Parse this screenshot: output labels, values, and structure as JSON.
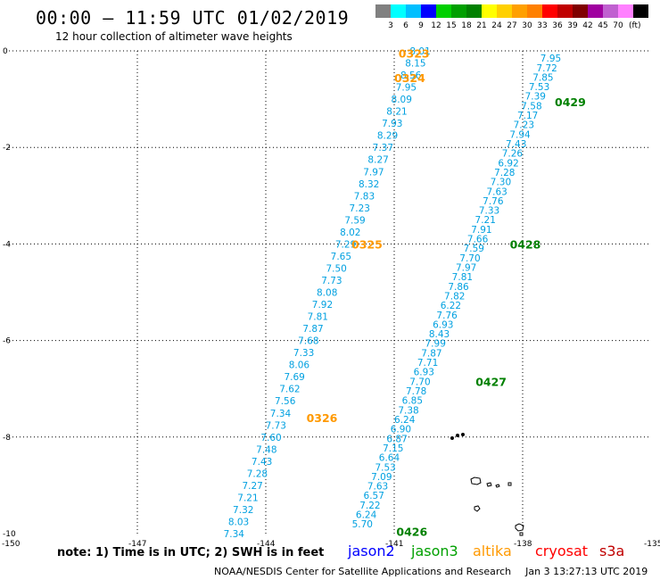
{
  "title": "00:00 – 11:59 UTC 01/02/2019",
  "subtitle": "12 hour collection of altimeter wave heights",
  "colorbar": {
    "swatches": [
      "#808080",
      "#00ffff",
      "#00bfff",
      "#0000ff",
      "#00d000",
      "#00a000",
      "#008000",
      "#ffff00",
      "#ffd000",
      "#ffa000",
      "#ff8000",
      "#ff0000",
      "#c00000",
      "#800000",
      "#a000a0",
      "#c060d0",
      "#ff80ff",
      "#000000"
    ],
    "labels": [
      "3",
      "6",
      "9",
      "12",
      "15",
      "18",
      "21",
      "24",
      "27",
      "30",
      "33",
      "36",
      "39",
      "42",
      "45",
      "70"
    ],
    "unit": "(ft)"
  },
  "axes": {
    "x_ticks": [
      "-150",
      "-147",
      "-144",
      "-141",
      "-138",
      "-135"
    ],
    "y_ticks": [
      "0",
      "-2",
      "-4",
      "-6",
      "-8",
      "-10"
    ]
  },
  "chart_data": {
    "type": "map",
    "xlim": [
      -150,
      -135
    ],
    "ylim": [
      -10,
      0
    ],
    "tracks": [
      {
        "color": "#00a0e0",
        "lon_start": -140.15,
        "lat_start": 0.0,
        "lon_end": -144.5,
        "lat_end": -10.0,
        "values": [
          "8.01",
          "8.15",
          "8.56",
          "7.95",
          "8.09",
          "8.21",
          "7.93",
          "8.29",
          "7.37",
          "8.27",
          "7.97",
          "8.32",
          "7.83",
          "7.23",
          "7.59",
          "8.02",
          "7.29",
          "7.65",
          "7.50",
          "7.73",
          "8.08",
          "7.92",
          "7.81",
          "7.87",
          "7.68",
          "7.33",
          "8.06",
          "7.69",
          "7.62",
          "7.56",
          "7.34",
          "7.73",
          "7.60",
          "7.48",
          "7.43",
          "7.28",
          "7.27",
          "7.21",
          "7.32",
          "8.03",
          "7.34"
        ]
      },
      {
        "color": "#00a0e0",
        "lon_start": -137.1,
        "lat_start": -0.15,
        "lon_end": -141.5,
        "lat_end": -9.8,
        "values": [
          "7.95",
          "7.72",
          "7.85",
          "7.53",
          "7.39",
          "7.58",
          "7.17",
          "7.23",
          "7.94",
          "7.43",
          "7.26",
          "6.92",
          "7.28",
          "7.30",
          "7.63",
          "7.76",
          "7.33",
          "7.21",
          "7.91",
          "7.66",
          "7.59",
          "7.70",
          "7.97",
          "7.81",
          "7.86",
          "7.82",
          "6.22",
          "7.76",
          "6.93",
          "8.43",
          "7.99",
          "7.87",
          "7.71",
          "6.93",
          "7.70",
          "7.78",
          "6.85",
          "7.38",
          "6.24",
          "6.90",
          "6.87",
          "7.15",
          "6.64",
          "7.53",
          "7.09",
          "7.63",
          "6.57",
          "7.22",
          "6.24",
          "5.70"
        ]
      }
    ],
    "time_labels": [
      {
        "text": "0323",
        "color": "#ff9900",
        "lon": -140.9,
        "lat": -0.05
      },
      {
        "text": "0324",
        "color": "#ff9900",
        "lon": -141.0,
        "lat": -0.55
      },
      {
        "text": "0325",
        "color": "#ff9900",
        "lon": -142.0,
        "lat": -4.0
      },
      {
        "text": "0326",
        "color": "#ff9900",
        "lon": -143.05,
        "lat": -7.6
      },
      {
        "text": "0429",
        "color": "#008000",
        "lon": -137.25,
        "lat": -1.05
      },
      {
        "text": "0428",
        "color": "#008000",
        "lon": -138.3,
        "lat": -4.0
      },
      {
        "text": "0427",
        "color": "#008000",
        "lon": -139.1,
        "lat": -6.85
      },
      {
        "text": "0426",
        "color": "#008000",
        "lon": -140.95,
        "lat": -9.95
      }
    ]
  },
  "note": "note:  1) Time is in UTC;  2) SWH is in feet",
  "satellites": [
    {
      "name": "jason2",
      "color": "#0000ff"
    },
    {
      "name": "jason3",
      "color": "#00a000"
    },
    {
      "name": "altika",
      "color": "#ff9900"
    },
    {
      "name": "cryosat",
      "color": "#ff0000"
    },
    {
      "name": "s3a",
      "color": "#c00000"
    }
  ],
  "footer": {
    "source": "NOAA/NESDIS Center for Satellite Applications and Research",
    "timestamp": "Jan  3 13:27:13 UTC 2019"
  }
}
